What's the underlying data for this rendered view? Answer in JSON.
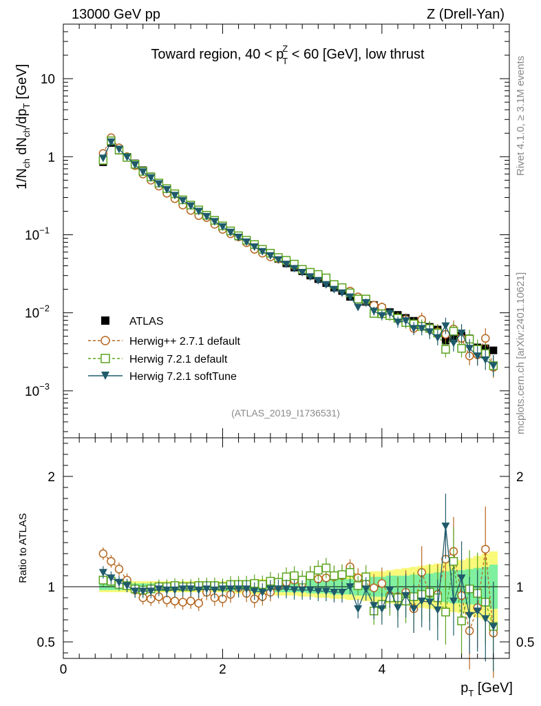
{
  "header": {
    "left": "13000 GeV pp",
    "right": "Z (Drell-Yan)",
    "side_top": "Rivet 4.1.0, ≥ 3.1M events",
    "side_bottom": "mcplots.cern.ch [arXiv:2401.10621]"
  },
  "colors": {
    "atlas": "#000000",
    "herwigpp": "#b5651d",
    "herwig721": "#5aa31f",
    "softtune": "#1f5a6b",
    "band_inner": "#7ff0a0",
    "band_outer": "#f9f97a"
  },
  "chart_data": [
    {
      "type": "scatter",
      "title": "Toward region, 40 < p_T^Z < 60 [GeV], low thrust",
      "title_parts": {
        "pre": "Toward region, 40 < p",
        "sup": "Z",
        "sub": "T",
        "post": " < 60 [GeV], low thrust"
      },
      "ylabel": "1/N_ch dN_ch/dp_T [GeV]",
      "ylabel_parts": {
        "a": "1/N",
        "sub1": "ch",
        "b": " dN",
        "sub2": "ch",
        "c": "/dp",
        "sub3": "T",
        "d": " [GeV]"
      },
      "yscale": "log",
      "xlim": [
        0,
        5.6
      ],
      "ylim": [
        0.00025,
        50
      ],
      "y_ticks": [
        {
          "value": 10,
          "base": "10",
          "exp": ""
        },
        {
          "value": 1,
          "base": "1",
          "exp": ""
        },
        {
          "value": 0.1,
          "base": "10",
          "exp": "−1"
        },
        {
          "value": 0.01,
          "base": "10",
          "exp": "−2"
        },
        {
          "value": 0.001,
          "base": "10",
          "exp": "−3"
        }
      ],
      "watermark": "(ATLAS_2019_I1736531)",
      "legend_position": "lower-left",
      "x": [
        0.5,
        0.6,
        0.7,
        0.8,
        0.9,
        1.0,
        1.1,
        1.2,
        1.3,
        1.4,
        1.5,
        1.6,
        1.7,
        1.8,
        1.9,
        2.0,
        2.1,
        2.2,
        2.3,
        2.4,
        2.5,
        2.6,
        2.7,
        2.8,
        2.9,
        3.0,
        3.1,
        3.2,
        3.3,
        3.4,
        3.5,
        3.6,
        3.7,
        3.8,
        3.9,
        4.0,
        4.1,
        4.2,
        4.3,
        4.4,
        4.5,
        4.6,
        4.7,
        4.8,
        4.9,
        5.0,
        5.1,
        5.2,
        5.3,
        5.4
      ],
      "series": [
        {
          "name": "ATLAS",
          "style": "filled-square",
          "values": [
            0.85,
            1.5,
            1.2,
            0.98,
            0.82,
            0.67,
            0.56,
            0.46,
            0.39,
            0.33,
            0.28,
            0.24,
            0.206,
            0.176,
            0.152,
            0.13,
            0.11,
            0.095,
            0.083,
            0.073,
            0.064,
            0.055,
            0.049,
            0.043,
            0.038,
            0.034,
            0.03,
            0.027,
            0.024,
            0.021,
            0.019,
            0.016,
            0.0148,
            0.0138,
            0.0126,
            0.0115,
            0.0102,
            0.0094,
            0.0086,
            0.0079,
            0.0072,
            0.0066,
            0.0061,
            0.0044,
            0.0047,
            0.0051,
            0.0047,
            0.0036,
            0.0035,
            0.0033
          ]
        },
        {
          "name": "Herwig++ 2.7.1 default",
          "style": "open-circle-dashed",
          "values": [
            1.1,
            1.75,
            1.3,
            1.0,
            0.77,
            0.6,
            0.5,
            0.42,
            0.34,
            0.29,
            0.24,
            0.205,
            0.176,
            0.166,
            0.136,
            0.117,
            0.103,
            0.094,
            0.079,
            0.065,
            0.058,
            0.052,
            0.049,
            0.045,
            0.04,
            0.035,
            0.033,
            0.029,
            0.026,
            0.023,
            0.021,
            0.019,
            0.016,
            0.0142,
            0.0125,
            0.0118,
            0.0094,
            0.0086,
            0.0082,
            0.0063,
            0.0082,
            0.0062,
            0.0057,
            0.0053,
            0.0062,
            0.0047,
            0.0028,
            0.0029,
            0.0047,
            0.002
          ]
        },
        {
          "name": "Herwig 7.2.1 default",
          "style": "open-square-dashed",
          "values": [
            0.9,
            1.6,
            1.22,
            0.98,
            0.8,
            0.65,
            0.55,
            0.46,
            0.39,
            0.335,
            0.28,
            0.24,
            0.208,
            0.178,
            0.153,
            0.13,
            0.112,
            0.097,
            0.085,
            0.075,
            0.065,
            0.058,
            0.051,
            0.047,
            0.042,
            0.036,
            0.033,
            0.031,
            0.028,
            0.023,
            0.021,
            0.018,
            0.015,
            0.015,
            0.0098,
            0.0097,
            0.0092,
            0.0085,
            0.0075,
            0.0072,
            0.0067,
            0.0063,
            0.0055,
            0.0034,
            0.0058,
            0.0035,
            0.0046,
            0.0034,
            0.003,
            0.0021
          ]
        },
        {
          "name": "Herwig 7.2.1 softTune",
          "style": "filled-triangle-solid",
          "values": [
            0.96,
            1.55,
            1.25,
            0.99,
            0.79,
            0.64,
            0.54,
            0.45,
            0.38,
            0.32,
            0.275,
            0.235,
            0.2,
            0.172,
            0.148,
            0.127,
            0.108,
            0.093,
            0.081,
            0.07,
            0.061,
            0.054,
            0.048,
            0.042,
            0.037,
            0.033,
            0.029,
            0.026,
            0.023,
            0.02,
            0.018,
            0.016,
            0.0118,
            0.0135,
            0.0105,
            0.0092,
            0.0099,
            0.0076,
            0.0079,
            0.0063,
            0.0063,
            0.0057,
            0.0048,
            0.0068,
            0.0041,
            0.0055,
            0.0035,
            0.0028,
            0.0025,
            0.0021
          ]
        }
      ]
    },
    {
      "type": "scatter",
      "xlabel": "p_T [GeV]",
      "xlabel_parts": {
        "a": "p",
        "sub": "T",
        "b": " [GeV]"
      },
      "ylabel": "Ratio to ATLAS",
      "xlim": [
        0,
        5.6
      ],
      "ylim": [
        0.35,
        2.35
      ],
      "y_ticks": [
        0.5,
        1,
        2
      ],
      "y_tick_labels": [
        "0.5",
        "1",
        "2"
      ],
      "x_ticks": [
        0,
        2,
        4
      ],
      "x_tick_labels": [
        "0",
        "2",
        "4"
      ],
      "x": [
        0.5,
        0.6,
        0.7,
        0.8,
        0.9,
        1.0,
        1.1,
        1.2,
        1.3,
        1.4,
        1.5,
        1.6,
        1.7,
        1.8,
        1.9,
        2.0,
        2.1,
        2.2,
        2.3,
        2.4,
        2.5,
        2.6,
        2.7,
        2.8,
        2.9,
        3.0,
        3.1,
        3.2,
        3.3,
        3.4,
        3.5,
        3.6,
        3.7,
        3.8,
        3.9,
        4.0,
        4.1,
        4.2,
        4.3,
        4.4,
        4.5,
        4.6,
        4.7,
        4.8,
        4.9,
        5.0,
        5.1,
        5.2,
        5.3,
        5.4
      ],
      "band_inner_halfwidth": [
        0.03,
        0.03,
        0.03,
        0.03,
        0.03,
        0.03,
        0.03,
        0.03,
        0.03,
        0.03,
        0.03,
        0.03,
        0.03,
        0.03,
        0.03,
        0.03,
        0.04,
        0.04,
        0.04,
        0.04,
        0.04,
        0.04,
        0.05,
        0.05,
        0.05,
        0.05,
        0.06,
        0.06,
        0.06,
        0.07,
        0.07,
        0.07,
        0.08,
        0.08,
        0.09,
        0.09,
        0.1,
        0.1,
        0.1,
        0.11,
        0.12,
        0.12,
        0.13,
        0.14,
        0.15,
        0.15,
        0.16,
        0.17,
        0.18,
        0.2
      ],
      "band_outer_halfwidth": [
        0.05,
        0.05,
        0.05,
        0.05,
        0.05,
        0.05,
        0.05,
        0.05,
        0.05,
        0.05,
        0.05,
        0.05,
        0.05,
        0.05,
        0.05,
        0.05,
        0.06,
        0.06,
        0.06,
        0.07,
        0.07,
        0.07,
        0.08,
        0.08,
        0.08,
        0.09,
        0.09,
        0.1,
        0.1,
        0.11,
        0.11,
        0.12,
        0.12,
        0.13,
        0.14,
        0.14,
        0.15,
        0.16,
        0.17,
        0.18,
        0.19,
        0.2,
        0.21,
        0.22,
        0.23,
        0.24,
        0.26,
        0.28,
        0.3,
        0.32
      ],
      "series": [
        {
          "name": "Herwig++ 2.7.1 default",
          "values": [
            1.3,
            1.23,
            1.16,
            1.06,
            0.97,
            0.9,
            0.89,
            0.91,
            0.88,
            0.87,
            0.86,
            0.87,
            0.85,
            0.95,
            0.9,
            0.89,
            0.93,
            0.99,
            0.94,
            0.89,
            0.91,
            0.95,
            1.0,
            1.04,
            1.06,
            1.03,
            1.1,
            1.07,
            1.08,
            1.09,
            1.1,
            1.18,
            1.08,
            1.03,
            0.99,
            1.03,
            0.92,
            0.91,
            0.95,
            0.8,
            1.13,
            0.94,
            0.93,
            1.25,
            1.32,
            0.92,
            0.6,
            0.81,
            1.34,
            0.58
          ]
        },
        {
          "name": "Herwig 7.2.1 default",
          "values": [
            1.06,
            1.05,
            1.02,
            1.01,
            0.98,
            0.97,
            0.98,
            1.0,
            1.0,
            1.01,
            1.0,
            1.0,
            1.01,
            1.01,
            1.01,
            1.0,
            1.02,
            1.02,
            1.02,
            1.03,
            1.02,
            1.05,
            1.04,
            1.09,
            1.1,
            1.06,
            1.1,
            1.15,
            1.17,
            1.1,
            1.11,
            1.13,
            1.01,
            1.09,
            0.78,
            0.84,
            0.9,
            0.9,
            0.87,
            0.91,
            0.93,
            0.95,
            0.9,
            0.77,
            1.23,
            0.69,
            0.98,
            0.94,
            0.86,
            0.64
          ]
        },
        {
          "name": "Herwig 7.2.1 softTune",
          "values": [
            1.13,
            1.08,
            1.04,
            1.01,
            0.96,
            0.96,
            0.96,
            0.98,
            0.97,
            0.97,
            0.98,
            0.98,
            0.97,
            0.98,
            0.97,
            0.98,
            0.98,
            0.98,
            0.98,
            0.96,
            0.95,
            0.98,
            0.98,
            0.98,
            0.97,
            0.97,
            0.97,
            0.96,
            0.96,
            0.95,
            0.95,
            1.0,
            0.8,
            0.98,
            0.83,
            0.8,
            0.97,
            0.81,
            0.92,
            0.8,
            0.87,
            0.86,
            0.79,
            1.55,
            0.87,
            1.08,
            0.74,
            0.78,
            0.71,
            0.64
          ]
        }
      ]
    }
  ]
}
